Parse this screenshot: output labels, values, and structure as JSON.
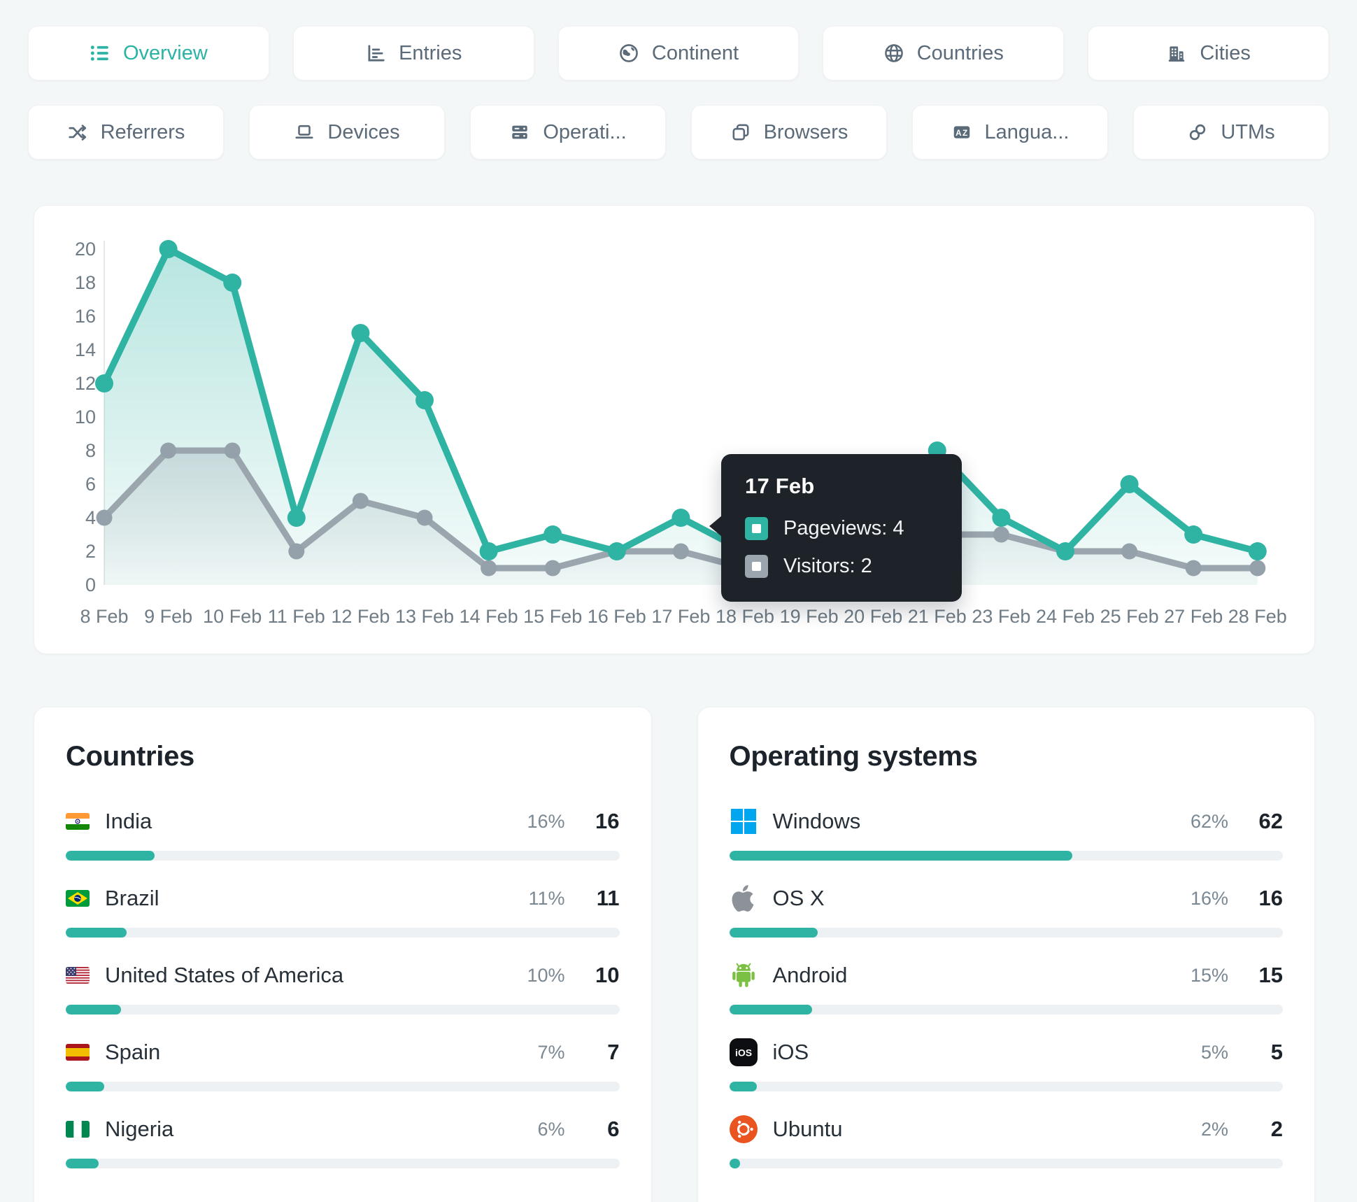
{
  "colors": {
    "accent_teal": "#2fb4a4",
    "visitors_gray": "#9aa5ae",
    "tab_text": "#5b6a78",
    "tooltip_bg": "#1d2329",
    "bar_track": "#eef1f3",
    "axis_text": "#6f7c86",
    "windows_blue": "#00a7ee",
    "apple_gray": "#8d9299",
    "android_green": "#7cc043",
    "ubuntu_orange": "#e95420"
  },
  "tabs_row1": [
    {
      "label": "Overview",
      "icon": "list-icon",
      "active": true
    },
    {
      "label": "Entries",
      "icon": "bar-chart-icon",
      "active": false
    },
    {
      "label": "Continent",
      "icon": "globe-continent-icon",
      "active": false
    },
    {
      "label": "Countries",
      "icon": "globe-icon",
      "active": false
    },
    {
      "label": "Cities",
      "icon": "buildings-icon",
      "active": false
    }
  ],
  "tabs_row2": [
    {
      "label": "Referrers",
      "icon": "shuffle-icon",
      "active": false
    },
    {
      "label": "Devices",
      "icon": "laptop-icon",
      "active": false
    },
    {
      "label": "Operati...",
      "icon": "server-icon",
      "active": false
    },
    {
      "label": "Browsers",
      "icon": "browsers-icon",
      "active": false
    },
    {
      "label": "Langua...",
      "icon": "translate-icon",
      "active": false
    },
    {
      "label": "UTMs",
      "icon": "link-icon",
      "active": false
    }
  ],
  "chart_data": {
    "type": "line",
    "x": [
      "8 Feb",
      "9 Feb",
      "10 Feb",
      "11 Feb",
      "12 Feb",
      "13 Feb",
      "14 Feb",
      "15 Feb",
      "16 Feb",
      "17 Feb",
      "18 Feb",
      "19 Feb",
      "20 Feb",
      "21 Feb",
      "23 Feb",
      "24 Feb",
      "25 Feb",
      "27 Feb",
      "28 Feb"
    ],
    "series": [
      {
        "name": "Pageviews",
        "color": "#2fb4a4",
        "values": [
          12,
          20,
          18,
          4,
          15,
          11,
          2,
          3,
          2,
          4,
          2,
          3,
          3,
          8,
          4,
          2,
          6,
          3,
          2
        ]
      },
      {
        "name": "Visitors",
        "color": "#9aa5ae",
        "values": [
          4,
          8,
          8,
          2,
          5,
          4,
          1,
          1,
          2,
          2,
          1,
          1,
          2,
          3,
          3,
          2,
          2,
          1,
          1
        ]
      }
    ],
    "ylim": [
      0,
      20
    ],
    "ytick_step": 2,
    "grid": false,
    "legend": "none"
  },
  "tooltip": {
    "date": "17 Feb",
    "rows": [
      {
        "label": "Pageviews",
        "value": 4,
        "color": "#2fb4a4"
      },
      {
        "label": "Visitors",
        "value": 2,
        "color": "#9aa5ae"
      }
    ]
  },
  "countries_panel": {
    "title": "Countries",
    "items": [
      {
        "name": "India",
        "icon": "flag-india",
        "percent": 16,
        "value": 16
      },
      {
        "name": "Brazil",
        "icon": "flag-brazil",
        "percent": 11,
        "value": 11
      },
      {
        "name": "United States of America",
        "icon": "flag-usa",
        "percent": 10,
        "value": 10
      },
      {
        "name": "Spain",
        "icon": "flag-spain",
        "percent": 7,
        "value": 7
      },
      {
        "name": "Nigeria",
        "icon": "flag-nigeria",
        "percent": 6,
        "value": 6
      }
    ]
  },
  "os_panel": {
    "title": "Operating systems",
    "items": [
      {
        "name": "Windows",
        "icon": "windows-logo-icon",
        "percent": 62,
        "value": 62
      },
      {
        "name": "OS X",
        "icon": "apple-logo-icon",
        "percent": 16,
        "value": 16
      },
      {
        "name": "Android",
        "icon": "android-logo-icon",
        "percent": 15,
        "value": 15
      },
      {
        "name": "iOS",
        "icon": "ios-logo-icon",
        "percent": 5,
        "value": 5
      },
      {
        "name": "Ubuntu",
        "icon": "ubuntu-logo-icon",
        "percent": 2,
        "value": 2
      }
    ]
  }
}
